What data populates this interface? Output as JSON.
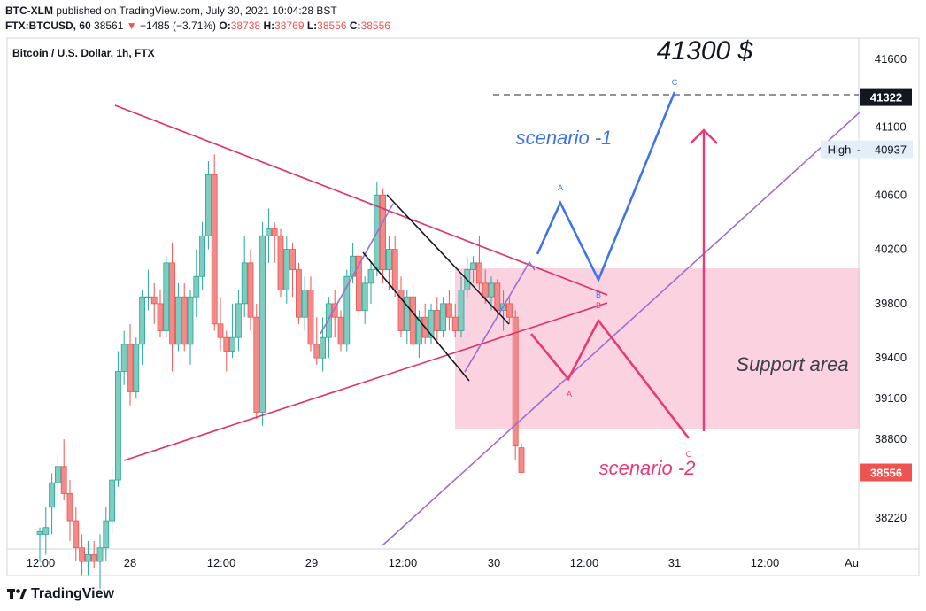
{
  "header": {
    "publisher": "BTC-XLM",
    "published_text": "published on TradingView.com, July 30, 2021 10:04:28 BST",
    "symbol": "FTX:BTCUSD, 60",
    "last_price": "38561",
    "change_arrow": "▼",
    "change": "−1485 (−3.71%)",
    "o_label": "O:",
    "o_value": "38738",
    "h_label": "H:",
    "h_value": "38769",
    "l_label": "L:",
    "l_value": "38556",
    "c_label": "C:",
    "c_value": "38556"
  },
  "chart_title": "Bitcoin / U.S. Dollar, 1h, FTX",
  "footer": {
    "brand": "TradingView"
  },
  "colors": {
    "bull": "#26a69a",
    "bull_body": "#7fcdc0",
    "bear": "#ef5350",
    "bear_body": "#f28a89",
    "triangle": "#e0306a",
    "channel": "#9b6fce",
    "scenario1": "#3f74e8",
    "scenario2": "#e83a73",
    "support_zone": "#f8bfd3"
  },
  "chart_data": {
    "type": "candlestick",
    "title": "Bitcoin / U.S. Dollar, 1h, FTX",
    "y_axis": {
      "position": "right",
      "ticks": [
        38220,
        38800,
        39100,
        39400,
        39800,
        40200,
        40600,
        41100,
        41600
      ]
    },
    "x_axis": {
      "ticks": [
        "12:00",
        "28",
        "12:00",
        "29",
        "12:00",
        "30",
        "12:00",
        "31",
        "12:00",
        "Au"
      ]
    },
    "price_labels": [
      {
        "label": "",
        "value": "41322",
        "price": 41322,
        "style": "dark"
      },
      {
        "label": "High",
        "value": "40937",
        "price": 40937,
        "style": "light"
      },
      {
        "label": "",
        "value": "38556",
        "price": 38556,
        "style": "red"
      }
    ],
    "candles": [
      {
        "t": 0,
        "o": 38100,
        "h": 38150,
        "l": 37900,
        "c": 38120
      },
      {
        "t": 2,
        "o": 38100,
        "h": 38300,
        "l": 37950,
        "c": 38150
      },
      {
        "t": 4,
        "o": 38300,
        "h": 38550,
        "l": 38100,
        "c": 38480
      },
      {
        "t": 6,
        "o": 38480,
        "h": 38700,
        "l": 38350,
        "c": 38600
      },
      {
        "t": 8,
        "o": 38600,
        "h": 38800,
        "l": 38350,
        "c": 38400
      },
      {
        "t": 10,
        "o": 38400,
        "h": 38500,
        "l": 38050,
        "c": 38200
      },
      {
        "t": 12,
        "o": 38200,
        "h": 38300,
        "l": 37900,
        "c": 38000
      },
      {
        "t": 14,
        "o": 38000,
        "h": 38100,
        "l": 37800,
        "c": 37900
      },
      {
        "t": 16,
        "o": 37900,
        "h": 38050,
        "l": 37800,
        "c": 37950
      },
      {
        "t": 18,
        "o": 37950,
        "h": 38050,
        "l": 37850,
        "c": 37900
      },
      {
        "t": 20,
        "o": 37900,
        "h": 38100,
        "l": 37700,
        "c": 38000
      },
      {
        "t": 22,
        "o": 38000,
        "h": 38300,
        "l": 37900,
        "c": 38200
      },
      {
        "t": 24,
        "o": 38200,
        "h": 38600,
        "l": 38100,
        "c": 38500
      },
      {
        "t": 26,
        "o": 38500,
        "h": 39450,
        "l": 38450,
        "c": 39300
      },
      {
        "t": 28,
        "o": 39300,
        "h": 39600,
        "l": 39200,
        "c": 39500
      },
      {
        "t": 30,
        "o": 39500,
        "h": 39650,
        "l": 39050,
        "c": 39150
      },
      {
        "t": 32,
        "o": 39150,
        "h": 39550,
        "l": 39100,
        "c": 39500
      },
      {
        "t": 34,
        "o": 39500,
        "h": 39900,
        "l": 39350,
        "c": 39850
      },
      {
        "t": 36,
        "o": 39850,
        "h": 40050,
        "l": 39750,
        "c": 39850
      },
      {
        "t": 38,
        "o": 39850,
        "h": 39950,
        "l": 39650,
        "c": 39800
      },
      {
        "t": 40,
        "o": 39800,
        "h": 39900,
        "l": 39550,
        "c": 39600
      },
      {
        "t": 42,
        "o": 39600,
        "h": 40150,
        "l": 39550,
        "c": 40100
      },
      {
        "t": 44,
        "o": 40100,
        "h": 40250,
        "l": 39300,
        "c": 39500
      },
      {
        "t": 46,
        "o": 39500,
        "h": 39950,
        "l": 39450,
        "c": 39850
      },
      {
        "t": 48,
        "o": 39850,
        "h": 39950,
        "l": 39450,
        "c": 39500
      },
      {
        "t": 50,
        "o": 39500,
        "h": 39900,
        "l": 39350,
        "c": 39850
      },
      {
        "t": 52,
        "o": 39850,
        "h": 40200,
        "l": 39700,
        "c": 40000
      },
      {
        "t": 54,
        "o": 40000,
        "h": 40400,
        "l": 39900,
        "c": 40300
      },
      {
        "t": 56,
        "o": 40300,
        "h": 40850,
        "l": 40200,
        "c": 40750
      },
      {
        "t": 58,
        "o": 40750,
        "h": 40900,
        "l": 39600,
        "c": 39650
      },
      {
        "t": 60,
        "o": 39650,
        "h": 39850,
        "l": 39450,
        "c": 39550
      },
      {
        "t": 62,
        "o": 39550,
        "h": 39600,
        "l": 39300,
        "c": 39450
      },
      {
        "t": 64,
        "o": 39450,
        "h": 39800,
        "l": 39400,
        "c": 39550
      },
      {
        "t": 66,
        "o": 39550,
        "h": 39900,
        "l": 39450,
        "c": 39800
      },
      {
        "t": 68,
        "o": 39800,
        "h": 40300,
        "l": 39700,
        "c": 40100
      },
      {
        "t": 70,
        "o": 40100,
        "h": 40200,
        "l": 39600,
        "c": 39700
      },
      {
        "t": 72,
        "o": 39700,
        "h": 39800,
        "l": 38950,
        "c": 39000
      },
      {
        "t": 74,
        "o": 39000,
        "h": 40400,
        "l": 38900,
        "c": 40300
      },
      {
        "t": 76,
        "o": 40300,
        "h": 40500,
        "l": 40100,
        "c": 40350
      },
      {
        "t": 78,
        "o": 40350,
        "h": 40400,
        "l": 40100,
        "c": 40300
      },
      {
        "t": 80,
        "o": 40300,
        "h": 40350,
        "l": 39850,
        "c": 39900
      },
      {
        "t": 82,
        "o": 39900,
        "h": 40300,
        "l": 39800,
        "c": 40200
      },
      {
        "t": 84,
        "o": 40200,
        "h": 40250,
        "l": 39850,
        "c": 40050
      },
      {
        "t": 86,
        "o": 40050,
        "h": 40100,
        "l": 39650,
        "c": 39700
      },
      {
        "t": 88,
        "o": 39700,
        "h": 40000,
        "l": 39600,
        "c": 39900
      },
      {
        "t": 90,
        "o": 39900,
        "h": 40000,
        "l": 39450,
        "c": 39500
      },
      {
        "t": 92,
        "o": 39500,
        "h": 39700,
        "l": 39350,
        "c": 39400
      },
      {
        "t": 94,
        "o": 39400,
        "h": 39700,
        "l": 39300,
        "c": 39550
      },
      {
        "t": 96,
        "o": 39550,
        "h": 39850,
        "l": 39400,
        "c": 39800
      },
      {
        "t": 98,
        "o": 39800,
        "h": 39900,
        "l": 39550,
        "c": 39700
      },
      {
        "t": 100,
        "o": 39700,
        "h": 39750,
        "l": 39450,
        "c": 39500
      },
      {
        "t": 102,
        "o": 39500,
        "h": 40050,
        "l": 39450,
        "c": 40000
      },
      {
        "t": 104,
        "o": 40000,
        "h": 40250,
        "l": 39950,
        "c": 40150
      },
      {
        "t": 106,
        "o": 40150,
        "h": 40200,
        "l": 39700,
        "c": 39750
      },
      {
        "t": 108,
        "o": 39750,
        "h": 40000,
        "l": 39650,
        "c": 39950
      },
      {
        "t": 110,
        "o": 39950,
        "h": 40100,
        "l": 39800,
        "c": 40050
      },
      {
        "t": 112,
        "o": 40050,
        "h": 40700,
        "l": 40000,
        "c": 40600
      },
      {
        "t": 114,
        "o": 40600,
        "h": 40650,
        "l": 39950,
        "c": 40050
      },
      {
        "t": 116,
        "o": 40050,
        "h": 40300,
        "l": 39900,
        "c": 40200
      },
      {
        "t": 118,
        "o": 40200,
        "h": 40300,
        "l": 39850,
        "c": 39900
      },
      {
        "t": 120,
        "o": 39900,
        "h": 40000,
        "l": 39550,
        "c": 39600
      },
      {
        "t": 122,
        "o": 39600,
        "h": 39900,
        "l": 39500,
        "c": 39850
      },
      {
        "t": 124,
        "o": 39850,
        "h": 39950,
        "l": 39450,
        "c": 39500
      },
      {
        "t": 126,
        "o": 39500,
        "h": 39750,
        "l": 39400,
        "c": 39700
      },
      {
        "t": 128,
        "o": 39700,
        "h": 39800,
        "l": 39500,
        "c": 39550
      },
      {
        "t": 130,
        "o": 39550,
        "h": 39800,
        "l": 39500,
        "c": 39750
      },
      {
        "t": 132,
        "o": 39750,
        "h": 39850,
        "l": 39500,
        "c": 39600
      },
      {
        "t": 134,
        "o": 39600,
        "h": 39850,
        "l": 39550,
        "c": 39800
      },
      {
        "t": 136,
        "o": 39800,
        "h": 39900,
        "l": 39600,
        "c": 39700
      },
      {
        "t": 138,
        "o": 39700,
        "h": 39800,
        "l": 39550,
        "c": 39600
      },
      {
        "t": 140,
        "o": 39600,
        "h": 40000,
        "l": 39550,
        "c": 39900
      },
      {
        "t": 142,
        "o": 39900,
        "h": 40150,
        "l": 39850,
        "c": 40050
      },
      {
        "t": 144,
        "o": 40050,
        "h": 40150,
        "l": 39950,
        "c": 40100
      },
      {
        "t": 146,
        "o": 40100,
        "h": 40300,
        "l": 39900,
        "c": 39950
      },
      {
        "t": 148,
        "o": 39950,
        "h": 40050,
        "l": 39800,
        "c": 39850
      },
      {
        "t": 150,
        "o": 39850,
        "h": 40000,
        "l": 39750,
        "c": 39950
      },
      {
        "t": 152,
        "o": 39950,
        "h": 39980,
        "l": 39700,
        "c": 39750
      },
      {
        "t": 154,
        "o": 39750,
        "h": 39900,
        "l": 39600,
        "c": 39800
      },
      {
        "t": 156,
        "o": 39800,
        "h": 39850,
        "l": 39650,
        "c": 39700
      },
      {
        "t": 158,
        "o": 39700,
        "h": 39750,
        "l": 38650,
        "c": 38750
      },
      {
        "t": 160,
        "o": 38738,
        "h": 38769,
        "l": 38556,
        "c": 38556
      }
    ],
    "drawings": {
      "annotations": [
        {
          "text": "41300 $",
          "color": "#131722"
        },
        {
          "text": "scenario -1",
          "color": "#3f74e8"
        },
        {
          "text": "scenario -2",
          "color": "#e83a73"
        },
        {
          "text": "Support area",
          "color": "#3b3f4a"
        }
      ],
      "wave_labels_s1": [
        "A",
        "B",
        "C"
      ],
      "wave_labels_s2": [
        "A",
        "B",
        "C"
      ]
    }
  }
}
